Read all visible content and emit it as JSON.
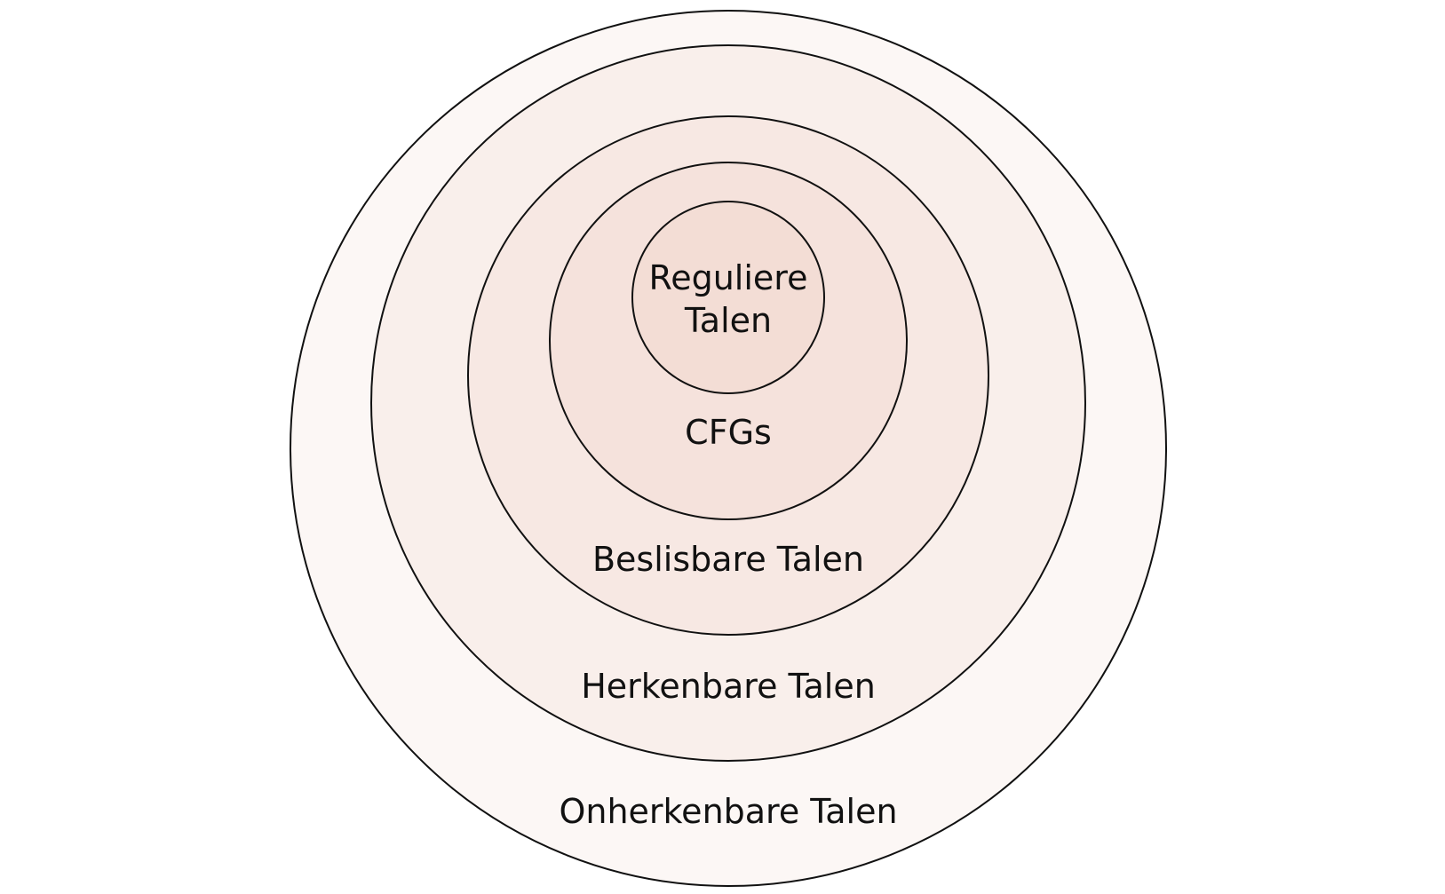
{
  "diagram": {
    "type": "nested-sets",
    "sets": [
      {
        "id": "onherkenbaar",
        "label": "Onherkenbare Talen",
        "fill": "#fcf7f5"
      },
      {
        "id": "herkenbaar",
        "label": "Herkenbare Talen",
        "fill": "#f9efeb"
      },
      {
        "id": "beslisbaar",
        "label": "Beslisbare Talen",
        "fill": "#f7e8e3"
      },
      {
        "id": "cfg",
        "label": "CFGs",
        "fill": "#f5e2dc"
      },
      {
        "id": "regulier",
        "label_line1": "Reguliere",
        "label_line2": "Talen",
        "fill": "#f3ddd5"
      }
    ]
  }
}
